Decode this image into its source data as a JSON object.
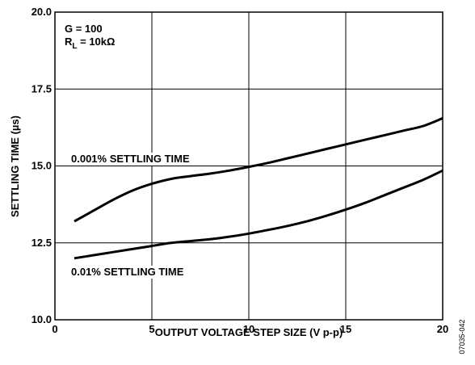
{
  "chart_data": {
    "type": "line",
    "xlabel": "OUTPUT VOLTAGE STEP SIZE (V p-p)",
    "ylabel": "SETTLING TIME (µs)",
    "xlim": [
      0,
      20
    ],
    "ylim": [
      10.0,
      20.0
    ],
    "x_ticks": [
      "0",
      "5",
      "10",
      "15",
      "20"
    ],
    "y_ticks": [
      "10.0",
      "12.5",
      "15.0",
      "17.5",
      "20.0"
    ],
    "grid": true,
    "conditions": {
      "gain": "G = 100",
      "rl_prefix": "R",
      "rl_sub": "L",
      "rl_value": " = 10kΩ"
    },
    "series": [
      {
        "name": "0.001% SETTLING TIME",
        "x": [
          1,
          2,
          3,
          4,
          5,
          6,
          7,
          8,
          9,
          10,
          11,
          12,
          13,
          14,
          15,
          16,
          17,
          18,
          19,
          20
        ],
        "values": [
          13.2,
          13.55,
          13.9,
          14.2,
          14.42,
          14.58,
          14.67,
          14.75,
          14.85,
          14.97,
          15.1,
          15.25,
          15.4,
          15.55,
          15.7,
          15.85,
          16.0,
          16.15,
          16.3,
          16.55
        ]
      },
      {
        "name": "0.01% SETTLING TIME",
        "x": [
          1,
          2,
          3,
          4,
          5,
          6,
          7,
          8,
          9,
          10,
          11,
          12,
          13,
          14,
          15,
          16,
          17,
          18,
          19,
          20
        ],
        "values": [
          12.0,
          12.1,
          12.2,
          12.3,
          12.4,
          12.5,
          12.56,
          12.62,
          12.7,
          12.8,
          12.92,
          13.05,
          13.2,
          13.38,
          13.58,
          13.8,
          14.05,
          14.3,
          14.55,
          14.85
        ]
      }
    ]
  },
  "figure_id": "07035-042"
}
